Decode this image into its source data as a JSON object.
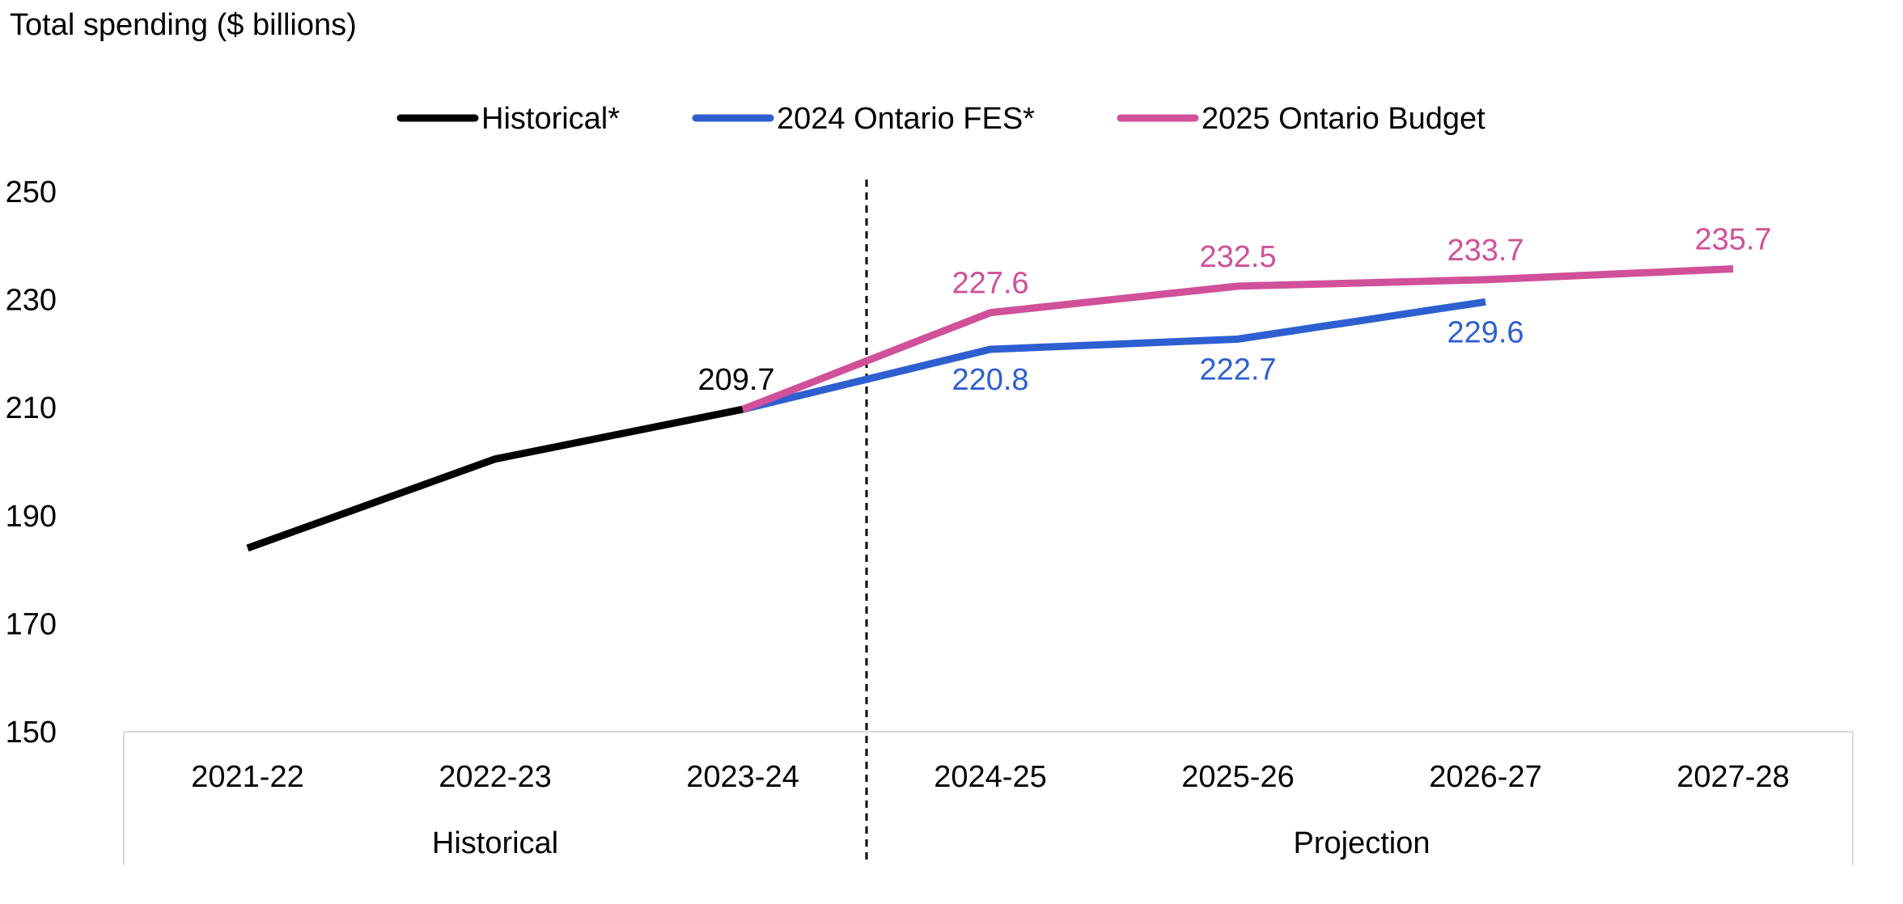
{
  "chart_data": {
    "type": "line",
    "title": "",
    "ylabel": "Total spending ($ billions)",
    "xlabel": "",
    "categories": [
      "2021-22",
      "2022-23",
      "2023-24",
      "2024-25",
      "2025-26",
      "2026-27",
      "2027-28"
    ],
    "groups": [
      {
        "label": "Historical",
        "from": "2021-22",
        "to": "2023-24"
      },
      {
        "label": "Projection",
        "from": "2024-25",
        "to": "2027-28"
      }
    ],
    "divider_between": [
      "2023-24",
      "2024-25"
    ],
    "ylim": [
      150,
      250
    ],
    "yticks": [
      150,
      170,
      190,
      210,
      230,
      250
    ],
    "grid": false,
    "legend_position": "top-center",
    "series": [
      {
        "name": "Historical*",
        "color": "#000000",
        "values": [
          184.0,
          200.5,
          209.7,
          null,
          null,
          null,
          null
        ],
        "labels": [
          null,
          null,
          "209.7",
          null,
          null,
          null,
          null
        ]
      },
      {
        "name": "2024 Ontario FES*",
        "color": "#2E5FD1",
        "values": [
          null,
          null,
          209.7,
          220.8,
          222.7,
          229.6,
          null
        ],
        "labels": [
          null,
          null,
          null,
          "220.8",
          "222.7",
          "229.6",
          null
        ]
      },
      {
        "name": "2025 Ontario Budget",
        "color": "#D1509A",
        "values": [
          null,
          null,
          209.7,
          227.6,
          232.5,
          233.7,
          235.7
        ],
        "labels": [
          null,
          null,
          null,
          "227.6",
          "232.5",
          "233.7",
          "235.7"
        ]
      }
    ]
  }
}
